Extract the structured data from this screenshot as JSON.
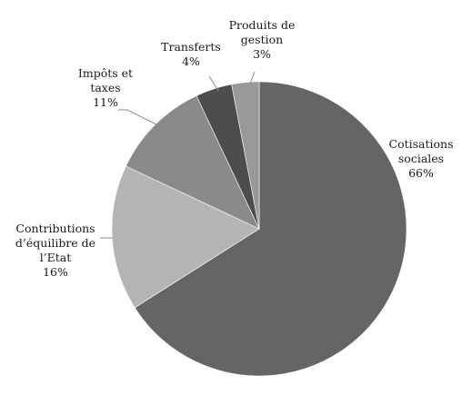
{
  "chart_data": {
    "type": "pie",
    "title": "",
    "legend": "none",
    "start": "top, clockwise",
    "slices": [
      {
        "label_lines": [
          "Cotisations",
          "sociales"
        ],
        "pct_label": "66%",
        "value": 66,
        "color": "#656565"
      },
      {
        "label_lines": [
          "Contributions",
          "d’équilibre de",
          "l’Etat"
        ],
        "pct_label": "16%",
        "value": 16,
        "color": "#b4b4b4"
      },
      {
        "label_lines": [
          "Impôts et",
          "taxes"
        ],
        "pct_label": "11%",
        "value": 11,
        "color": "#8a8a8a"
      },
      {
        "label_lines": [
          "Transferts"
        ],
        "pct_label": "4%",
        "value": 4,
        "color": "#4d4d4d"
      },
      {
        "label_lines": [
          "Produits de",
          "gestion"
        ],
        "pct_label": "3%",
        "value": 3,
        "color": "#999999"
      }
    ]
  }
}
